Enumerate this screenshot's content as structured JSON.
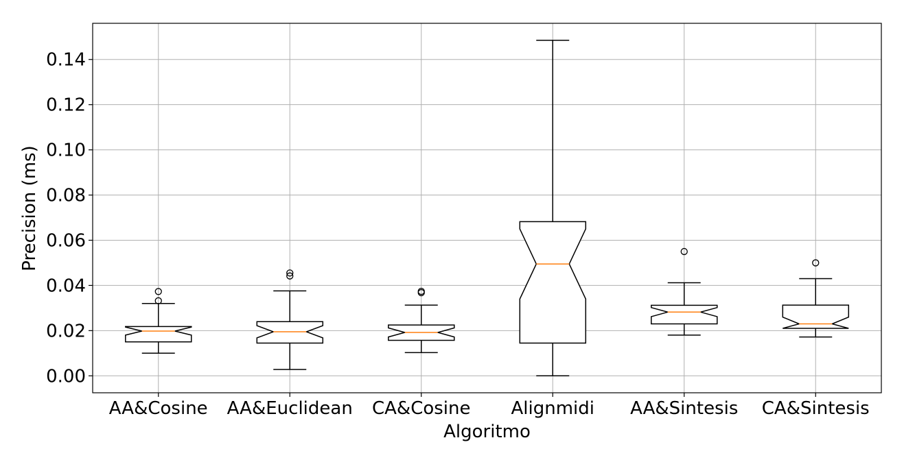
{
  "chart_data": {
    "type": "boxplot",
    "notched": true,
    "title": "",
    "xlabel": "Algoritmo",
    "ylabel": "Precision (ms)",
    "ylim": [
      -0.0075,
      0.156
    ],
    "yticks": [
      0.0,
      0.02,
      0.04,
      0.06,
      0.08,
      0.1,
      0.12,
      0.14
    ],
    "ytick_labels": [
      "0.00",
      "0.02",
      "0.04",
      "0.06",
      "0.08",
      "0.10",
      "0.12",
      "0.14"
    ],
    "grid": true,
    "colors": {
      "median": "#ff7f0e",
      "box": "#000000",
      "grid": "#b0b0b0"
    },
    "categories": [
      "AA&Cosine",
      "AA&Euclidean",
      "CA&Cosine",
      "Alignmidi",
      "AA&Sintesis",
      "CA&Sintesis"
    ],
    "boxes": [
      {
        "name": "AA&Cosine",
        "whislo": 0.01,
        "q1": 0.015,
        "med": 0.0198,
        "q3": 0.0218,
        "whishi": 0.032,
        "cilo": 0.018,
        "cihi": 0.0216,
        "fliers": [
          0.0332,
          0.0373
        ]
      },
      {
        "name": "AA&Euclidean",
        "whislo": 0.0028,
        "q1": 0.0145,
        "med": 0.0195,
        "q3": 0.024,
        "whishi": 0.0376,
        "cilo": 0.0168,
        "cihi": 0.0222,
        "fliers": [
          0.0442,
          0.0455
        ]
      },
      {
        "name": "CA&Cosine",
        "whislo": 0.0103,
        "q1": 0.0157,
        "med": 0.0192,
        "q3": 0.0225,
        "whishi": 0.0313,
        "cilo": 0.0172,
        "cihi": 0.0212,
        "fliers": [
          0.0368,
          0.0374
        ]
      },
      {
        "name": "Alignmidi",
        "whislo": 0.0,
        "q1": 0.0145,
        "med": 0.0495,
        "q3": 0.0682,
        "whishi": 0.1485,
        "cilo": 0.034,
        "cihi": 0.065,
        "fliers": []
      },
      {
        "name": "AA&Sintesis",
        "whislo": 0.018,
        "q1": 0.023,
        "med": 0.0282,
        "q3": 0.0312,
        "whishi": 0.0412,
        "cilo": 0.0262,
        "cihi": 0.0302,
        "fliers": [
          0.055
        ]
      },
      {
        "name": "CA&Sintesis",
        "whislo": 0.0172,
        "q1": 0.021,
        "med": 0.023,
        "q3": 0.0313,
        "whishi": 0.043,
        "cilo": 0.021,
        "cihi": 0.026,
        "fliers": [
          0.05
        ]
      }
    ]
  }
}
